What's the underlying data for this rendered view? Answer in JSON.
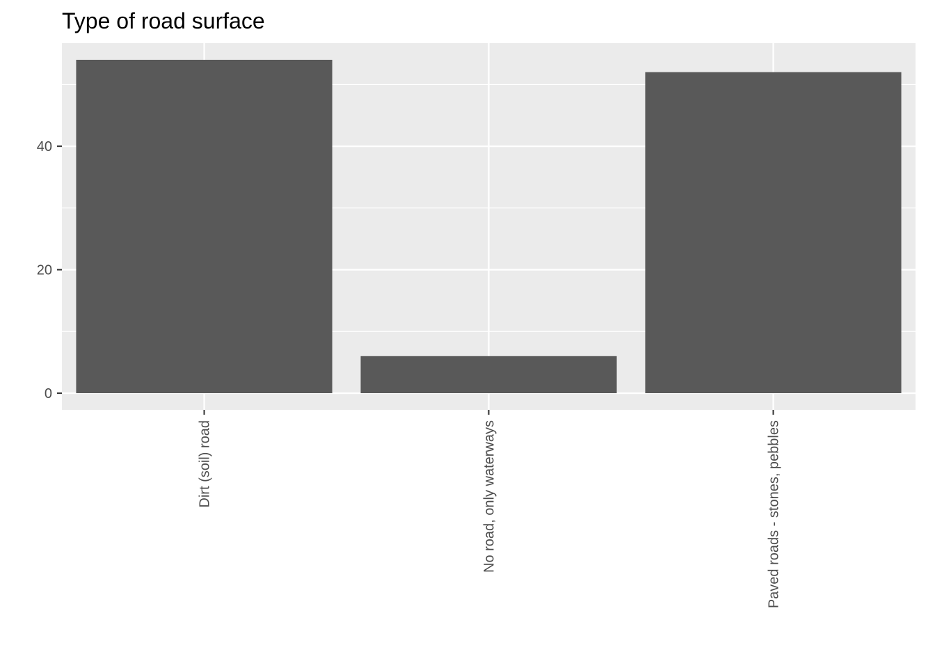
{
  "chart_data": {
    "type": "bar",
    "title": "Type of road surface",
    "xlabel": "",
    "ylabel": "",
    "categories": [
      "Dirt (soil) road",
      "No road, only waterways",
      "Paved roads - stones, pebbles"
    ],
    "values": [
      54,
      6,
      52
    ],
    "ylim": [
      -2.7,
      56.7
    ],
    "y_ticks": [
      0,
      20,
      40
    ],
    "y_tick_labels": [
      "0",
      "20",
      "40"
    ],
    "y_minor_ticks": [
      10,
      30,
      50
    ],
    "grid": true,
    "legend": "none",
    "colors": {
      "bar": "#595959",
      "panel": "#ebebeb",
      "grid": "#ffffff",
      "tick_text": "#4d4d4d",
      "title_text": "#000000"
    }
  }
}
